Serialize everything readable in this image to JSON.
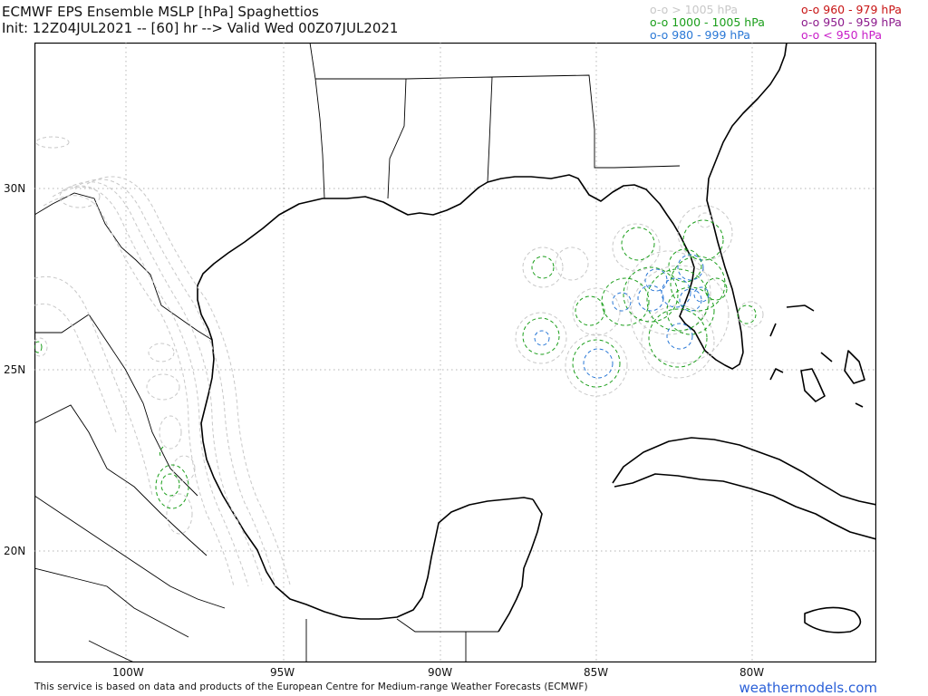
{
  "header": {
    "title": "ECMWF EPS Ensemble MSLP [hPa] Spaghettios",
    "subtitle": "Init: 12Z04JUL2021 -- [60] hr --> Valid Wed 00Z07JUL2021"
  },
  "legend": {
    "gt1005": "o-o > 1005 hPa",
    "p1000_1005": "o-o 1000 - 1005 hPa",
    "p980_999": "o-o 980 - 999 hPa",
    "p960_979": "o-o 960 - 979 hPa",
    "p950_959": "o-o 950 - 959 hPa",
    "lt950": "o-o < 950 hPa",
    "colors": {
      "gt1005": "#c8c8c8",
      "p1000_1005": "#1a9e1a",
      "p980_999": "#2a78d6",
      "p960_979": "#c81414",
      "p950_959": "#8c1a8c",
      "lt950": "#c81ec8"
    }
  },
  "axes": {
    "x_ticks": [
      "100W",
      "95W",
      "90W",
      "85W",
      "80W"
    ],
    "y_ticks": [
      "30N",
      "25N",
      "20N"
    ]
  },
  "footer": {
    "notice": "This service is based on data and products of the European Centre for Medium-range Weather Forecasts (ECMWF)",
    "brand": "weathermodels.com"
  }
}
